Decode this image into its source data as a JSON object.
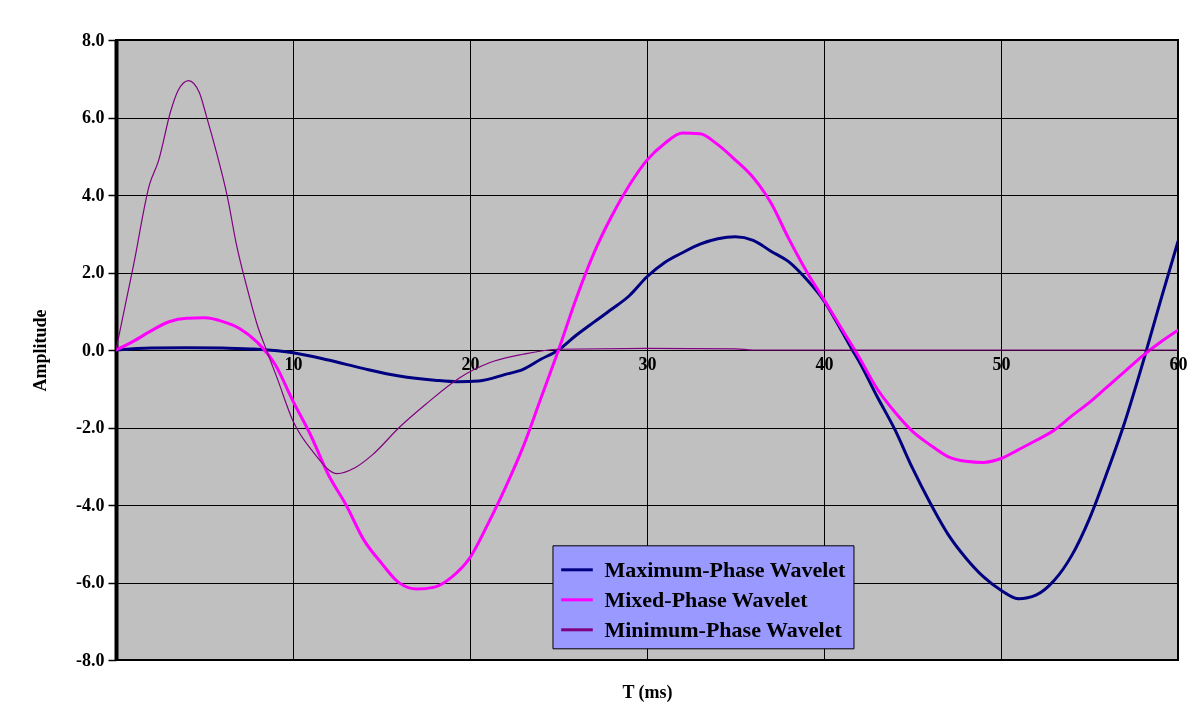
{
  "chart_data": {
    "type": "line",
    "xlabel": "T (ms)",
    "ylabel": "Amplitude",
    "xlim": [
      0,
      60
    ],
    "xticks": [
      {
        "value": 0,
        "label": null
      },
      10,
      20,
      30,
      40,
      50,
      60
    ],
    "ylim": [
      -8,
      8
    ],
    "yticks": [
      {
        "value": -8,
        "label": "-8.0"
      },
      {
        "value": -6,
        "label": "-6.0"
      },
      {
        "value": -4,
        "label": "-4.0"
      },
      {
        "value": -2,
        "label": "-2.0"
      },
      {
        "value": 0,
        "label": "0.0"
      },
      {
        "value": 2,
        "label": "2.0"
      },
      {
        "value": 4,
        "label": "4.0"
      },
      {
        "value": 6,
        "label": "6.0"
      },
      {
        "value": 8,
        "label": "8.0"
      }
    ],
    "grid": true,
    "legend": "bottom",
    "line_style": "solid",
    "series": [
      {
        "name": "Maximum-Phase Wavelet",
        "color": "#000080",
        "x": [
          0,
          2,
          4,
          6,
          8,
          10,
          12,
          14,
          16,
          18,
          19.3,
          20.5,
          22,
          23,
          24,
          25,
          26,
          27,
          28,
          29,
          30,
          31,
          32,
          33,
          34,
          35,
          36,
          37,
          38,
          39,
          40,
          41,
          41.6,
          42,
          43,
          44,
          45,
          46,
          47,
          48,
          49,
          50,
          51,
          52,
          53,
          54,
          55,
          56,
          57,
          58,
          59,
          60
        ],
        "values": [
          0,
          0.05,
          0.06,
          0.05,
          0.02,
          -0.07,
          -0.26,
          -0.48,
          -0.67,
          -0.78,
          -0.82,
          -0.8,
          -0.63,
          -0.5,
          -0.24,
          0,
          0.38,
          0.72,
          1.05,
          1.4,
          1.89,
          2.26,
          2.51,
          2.73,
          2.87,
          2.92,
          2.83,
          2.55,
          2.28,
          1.83,
          1.27,
          0.49,
          0,
          -0.31,
          -1.2,
          -2.05,
          -3.05,
          -3.95,
          -4.75,
          -5.36,
          -5.85,
          -6.2,
          -6.42,
          -6.32,
          -5.95,
          -5.3,
          -4.35,
          -3.15,
          -1.85,
          -0.35,
          1.25,
          2.8
        ]
      },
      {
        "name": "Mixed-Phase Wavelet",
        "color": "#ff00ff",
        "x": [
          0,
          1,
          2,
          3,
          4,
          5,
          6,
          7,
          8,
          9,
          10,
          11,
          12,
          13,
          14,
          15,
          16,
          17,
          18,
          19,
          20,
          21,
          22,
          23,
          24,
          25,
          26,
          27,
          28,
          29,
          30,
          31,
          32,
          33,
          34,
          35,
          36,
          37,
          38,
          39,
          40,
          41,
          42,
          43,
          44,
          45,
          46,
          47,
          48,
          49,
          50,
          51,
          52,
          53,
          54,
          55,
          56,
          57,
          58,
          59,
          60
        ],
        "values": [
          0,
          0.23,
          0.5,
          0.73,
          0.82,
          0.83,
          0.74,
          0.55,
          0.19,
          -0.38,
          -1.32,
          -2.2,
          -3.22,
          -4.0,
          -4.9,
          -5.5,
          -6.01,
          -6.17,
          -6.12,
          -5.85,
          -5.36,
          -4.5,
          -3.55,
          -2.5,
          -1.25,
          0,
          1.33,
          2.5,
          3.45,
          4.25,
          4.9,
          5.33,
          5.6,
          5.58,
          5.3,
          4.9,
          4.45,
          3.8,
          2.88,
          2.04,
          1.3,
          0.55,
          -0.2,
          -1.0,
          -1.6,
          -2.1,
          -2.45,
          -2.75,
          -2.87,
          -2.9,
          -2.8,
          -2.57,
          -2.33,
          -2.07,
          -1.7,
          -1.35,
          -0.95,
          -0.55,
          -0.15,
          0.2,
          0.51
        ]
      },
      {
        "name": "Minimum-Phase Wavelet",
        "color": "#800080",
        "x": [
          0,
          1,
          1.9,
          2.4,
          3.1,
          3.5,
          4.1,
          4.7,
          5.1,
          5.7,
          6.3,
          6.8,
          7.4,
          8.0,
          8.5,
          9.1,
          10,
          11.1,
          12.5,
          13.5,
          14.5,
          16,
          17.5,
          19.4,
          21.1,
          23,
          25,
          30,
          35,
          36,
          40,
          50,
          60
        ],
        "values": [
          0,
          2.21,
          4.28,
          4.88,
          6.18,
          6.69,
          6.95,
          6.65,
          6.05,
          5.06,
          3.94,
          2.73,
          1.61,
          0.62,
          0,
          -0.72,
          -1.83,
          -2.61,
          -3.19,
          -3.04,
          -2.7,
          -2.0,
          -1.4,
          -0.72,
          -0.33,
          -0.11,
          0.02,
          0.04,
          0.03,
          0,
          0,
          0,
          0
        ]
      }
    ]
  }
}
